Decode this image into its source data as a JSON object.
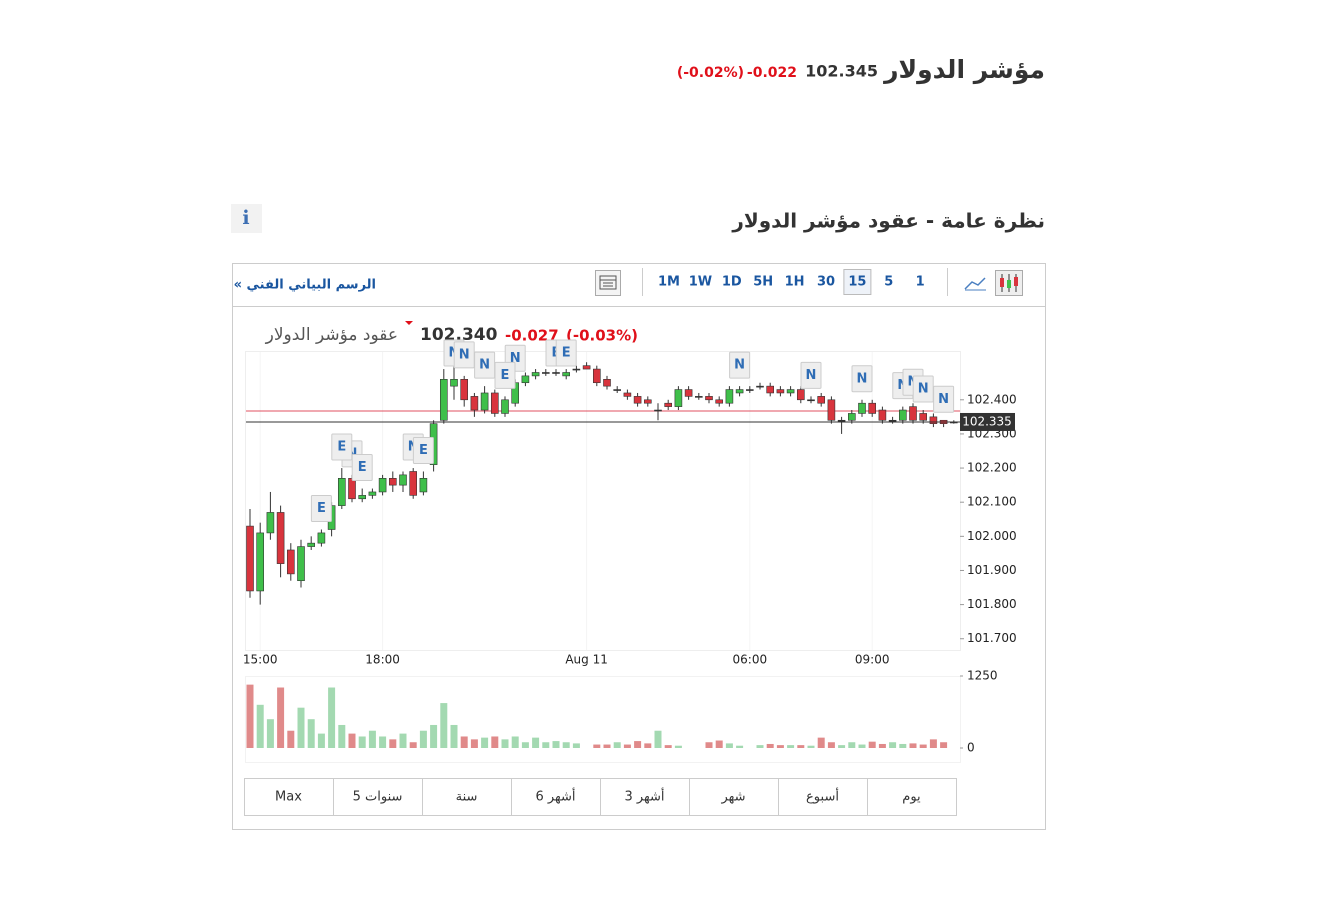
{
  "header": {
    "title": "مؤشر الدولار",
    "price": "102.345",
    "change": "-0.022",
    "change_pct": "(-0.02%)"
  },
  "section": {
    "title": "نظرة عامة - عقود مؤشر الدولار",
    "info": "i"
  },
  "toolbar": {
    "link": "الرسم البياني الفني »",
    "intervals": [
      "1M",
      "1W",
      "1D",
      "5H",
      "1H",
      "30",
      "15",
      "5",
      "1"
    ],
    "active_interval": 6
  },
  "ranges": [
    "Max",
    "5 سنوات",
    "سنة",
    "6 أشهر",
    "3 أشهر",
    "شهر",
    "أسبوع",
    "يوم"
  ],
  "chart_data": {
    "type": "candlestick",
    "legend": {
      "name": "عقود مؤشر الدولار",
      "price": "102.340",
      "change": "-0.027",
      "change_pct": "(-0.03%)"
    },
    "categories": [
      null,
      "15:00",
      null,
      null,
      null,
      null,
      null,
      null,
      null,
      null,
      null,
      null,
      null,
      "18:00",
      null,
      null,
      null,
      null,
      null,
      null,
      null,
      null,
      null,
      null,
      null,
      null,
      null,
      null,
      null,
      null,
      null,
      null,
      null,
      "Aug 11",
      null,
      null,
      null,
      null,
      null,
      null,
      null,
      null,
      null,
      null,
      null,
      null,
      null,
      null,
      null,
      "06:00",
      null,
      null,
      null,
      null,
      null,
      null,
      null,
      null,
      null,
      null,
      null,
      "09:00",
      null,
      null,
      null,
      null,
      null,
      null,
      null,
      null
    ],
    "open": [
      102.03,
      101.84,
      102.01,
      102.07,
      101.96,
      101.87,
      101.97,
      101.98,
      102.02,
      102.09,
      102.17,
      102.11,
      102.12,
      102.13,
      102.17,
      102.15,
      102.19,
      102.13,
      102.21,
      102.34,
      102.44,
      102.46,
      102.41,
      102.37,
      102.42,
      102.36,
      102.39,
      102.45,
      102.47,
      102.48,
      102.48,
      102.47,
      102.49,
      102.5,
      102.49,
      102.46,
      102.43,
      102.42,
      102.41,
      102.4,
      102.37,
      102.39,
      102.38,
      102.43,
      102.41,
      102.41,
      102.4,
      102.39,
      102.42,
      102.43,
      102.44,
      102.44,
      102.43,
      102.42,
      102.43,
      102.4,
      102.41,
      102.4,
      102.34,
      102.34,
      102.36,
      102.39,
      102.37,
      102.34,
      102.34,
      102.38,
      102.36,
      102.35,
      102.34,
      102.335
    ],
    "high": [
      102.08,
      102.04,
      102.13,
      102.09,
      101.98,
      101.99,
      102.0,
      102.02,
      102.1,
      102.2,
      102.18,
      102.14,
      102.14,
      102.18,
      102.19,
      102.19,
      102.2,
      102.19,
      102.34,
      102.49,
      102.5,
      102.47,
      102.42,
      102.44,
      102.43,
      102.41,
      102.46,
      102.48,
      102.49,
      102.49,
      102.49,
      102.49,
      102.5,
      102.51,
      102.5,
      102.47,
      102.44,
      102.43,
      102.42,
      102.41,
      102.39,
      102.4,
      102.44,
      102.44,
      102.42,
      102.42,
      102.41,
      102.44,
      102.44,
      102.44,
      102.45,
      102.45,
      102.44,
      102.44,
      102.44,
      102.41,
      102.42,
      102.41,
      102.35,
      102.37,
      102.4,
      102.4,
      102.38,
      102.35,
      102.38,
      102.39,
      102.37,
      102.36,
      102.34,
      102.34
    ],
    "low": [
      101.82,
      101.8,
      101.99,
      101.88,
      101.87,
      101.85,
      101.96,
      101.97,
      102.0,
      102.08,
      102.1,
      102.1,
      102.11,
      102.12,
      102.13,
      102.13,
      102.11,
      102.12,
      102.19,
      102.33,
      102.4,
      102.38,
      102.35,
      102.36,
      102.35,
      102.35,
      102.38,
      102.44,
      102.46,
      102.47,
      102.47,
      102.46,
      102.48,
      102.49,
      102.44,
      102.43,
      102.42,
      102.4,
      102.38,
      102.38,
      102.34,
      102.37,
      102.37,
      102.4,
      102.4,
      102.39,
      102.38,
      102.38,
      102.41,
      102.42,
      102.43,
      102.41,
      102.41,
      102.41,
      102.39,
      102.39,
      102.38,
      102.33,
      102.3,
      102.33,
      102.35,
      102.35,
      102.33,
      102.33,
      102.33,
      102.33,
      102.33,
      102.32,
      102.32,
      102.33
    ],
    "close": [
      101.84,
      102.01,
      102.07,
      101.92,
      101.89,
      101.97,
      101.98,
      102.01,
      102.09,
      102.17,
      102.11,
      102.12,
      102.13,
      102.17,
      102.15,
      102.18,
      102.12,
      102.17,
      102.33,
      102.46,
      102.46,
      102.4,
      102.37,
      102.42,
      102.36,
      102.4,
      102.45,
      102.47,
      102.48,
      102.48,
      102.48,
      102.48,
      102.49,
      102.49,
      102.45,
      102.44,
      102.43,
      102.41,
      102.39,
      102.39,
      102.37,
      102.38,
      102.43,
      102.41,
      102.41,
      102.4,
      102.39,
      102.43,
      102.43,
      102.43,
      102.44,
      102.42,
      102.42,
      102.43,
      102.4,
      102.4,
      102.39,
      102.34,
      102.34,
      102.36,
      102.39,
      102.36,
      102.34,
      102.34,
      102.37,
      102.34,
      102.34,
      102.33,
      102.33,
      102.335
    ],
    "colors": {
      "up": "#3fbf4a",
      "down": "#d8343d",
      "flat": "#333333",
      "volume_up": "#a3d9b1",
      "volume_down": "#e08a8a"
    },
    "ylim": [
      101.667,
      102.54
    ],
    "yticks": [
      {
        "value": 101.7,
        "label": "101.700"
      },
      {
        "value": 101.8,
        "label": "101.800"
      },
      {
        "value": 101.9,
        "label": "101.900"
      },
      {
        "value": 102.0,
        "label": "102.000"
      },
      {
        "value": 102.1,
        "label": "102.100"
      },
      {
        "value": 102.2,
        "label": "102.200"
      },
      {
        "value": 102.3,
        "label": "102.300"
      },
      {
        "value": 102.4,
        "label": "102.400"
      }
    ],
    "last_price": 102.335,
    "reference_line": 102.367,
    "events": [
      {
        "x": 7,
        "label": "E"
      },
      {
        "x": 10,
        "label": "N"
      },
      {
        "x": 9,
        "label": "E"
      },
      {
        "x": 11,
        "label": "E"
      },
      {
        "x": 16,
        "label": "N"
      },
      {
        "x": 17,
        "label": "E"
      },
      {
        "x": 20,
        "label": "N"
      },
      {
        "x": 21,
        "label": "N"
      },
      {
        "x": 23,
        "label": "N"
      },
      {
        "x": 26,
        "label": "N"
      },
      {
        "x": 25,
        "label": "E"
      },
      {
        "x": 30,
        "label": "E"
      },
      {
        "x": 31,
        "label": "E"
      },
      {
        "x": 48,
        "label": "N"
      },
      {
        "x": 55,
        "label": "N"
      },
      {
        "x": 60,
        "label": "N"
      },
      {
        "x": 64,
        "label": "N"
      },
      {
        "x": 65,
        "label": "N"
      },
      {
        "x": 66,
        "label": "N"
      },
      {
        "x": 68,
        "label": "N"
      }
    ],
    "volume": {
      "values": [
        1100,
        750,
        500,
        1050,
        300,
        700,
        500,
        250,
        1050,
        400,
        250,
        200,
        300,
        200,
        150,
        250,
        100,
        300,
        400,
        780,
        400,
        200,
        150,
        180,
        200,
        150,
        200,
        100,
        180,
        100,
        120,
        100,
        80,
        0,
        60,
        60,
        100,
        60,
        120,
        80,
        300,
        50,
        40,
        0,
        0,
        100,
        130,
        80,
        40,
        0,
        50,
        70,
        50,
        50,
        50,
        40,
        180,
        100,
        50,
        100,
        60,
        110,
        70,
        100,
        70,
        80,
        60,
        150,
        100,
        0
      ],
      "ylim": [
        0,
        1250
      ],
      "yticks": [
        0,
        1250
      ]
    }
  }
}
